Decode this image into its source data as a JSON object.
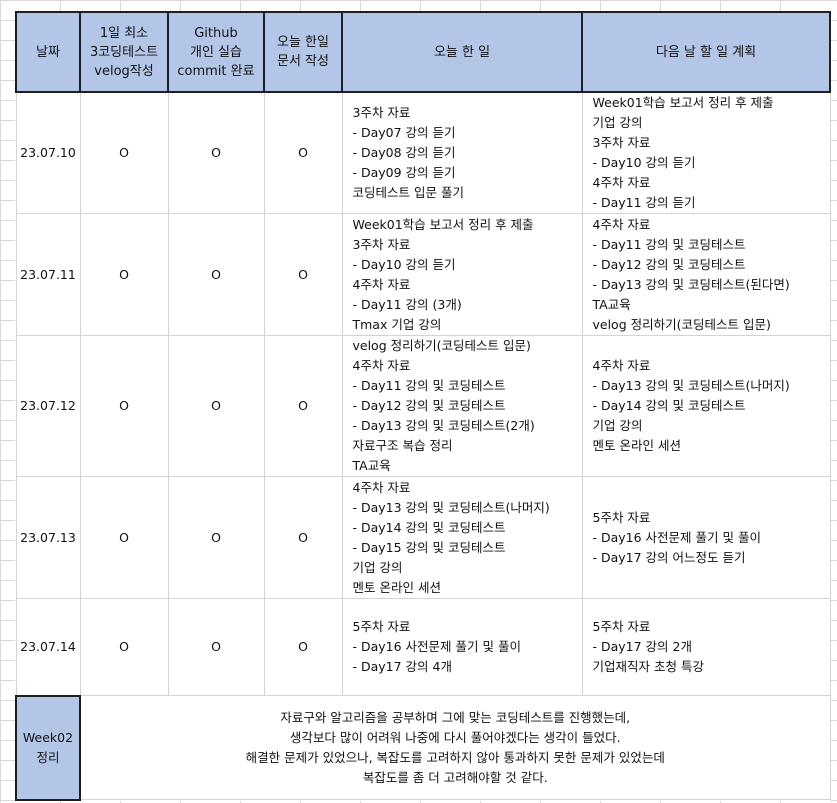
{
  "header": {
    "date": "날짜",
    "coding_test": "1일 최소\n3코딩테스트\nvelog작성",
    "github": "Github\n개인 실습\ncommit 완료",
    "doc": "오늘 한일\n문서 작성",
    "today": "오늘 한 일",
    "tomorrow": "다음 날 할 일 계획"
  },
  "rows": [
    {
      "date": "23.07.10",
      "mark1": "O",
      "mark2": "O",
      "mark3": "O",
      "today": [
        "3주차 자료",
        "- Day07 강의 듣기",
        "- Day08 강의 듣기",
        "- Day09 강의 듣기",
        "코딩테스트 입문 풀기"
      ],
      "tomorrow": [
        "Week01학습 보고서 정리 후 제출",
        "기업 강의",
        "3주차 자료",
        "- Day10 강의 듣기",
        "4주차 자료",
        "- Day11 강의 듣기"
      ]
    },
    {
      "date": "23.07.11",
      "mark1": "O",
      "mark2": "O",
      "mark3": "O",
      "today": [
        "Week01학습 보고서 정리 후 제출",
        "3주차 자료",
        "- Day10 강의 듣기",
        "4주차 자료",
        "- Day11 강의 (3개)",
        "Tmax 기업 강의"
      ],
      "tomorrow": [
        "4주차 자료",
        "- Day11 강의 및 코딩테스트",
        "- Day12 강의 및 코딩테스트",
        "- Day13 강의 및 코딩테스트(된다면)",
        "TA교육",
        "velog 정리하기(코딩테스트 입문)"
      ]
    },
    {
      "date": "23.07.12",
      "mark1": "O",
      "mark2": "O",
      "mark3": "O",
      "today": [
        "velog 정리하기(코딩테스트 입문)",
        "4주차 자료",
        "- Day11 강의 및 코딩테스트",
        "- Day12 강의 및 코딩테스트",
        "- Day13 강의 및 코딩테스트(2개)",
        "자료구조 복습 정리",
        "TA교육"
      ],
      "tomorrow": [
        "4주차 자료",
        "- Day13 강의 및 코딩테스트(나머지)",
        "- Day14 강의 및 코딩테스트",
        "기업 강의",
        "멘토 온라인 세션"
      ]
    },
    {
      "date": "23.07.13",
      "mark1": "O",
      "mark2": "O",
      "mark3": "O",
      "today": [
        "4주차 자료",
        "- Day13 강의 및 코딩테스트(나머지)",
        "- Day14 강의 및 코딩테스트",
        "- Day15 강의 및 코딩테스트",
        "기업 강의",
        "멘토 온라인 세션"
      ],
      "tomorrow": [
        "5주차 자료",
        "- Day16 사전문제 풀기 및 풀이",
        "- Day17 강의 어느정도 듣기"
      ]
    },
    {
      "date": "23.07.14",
      "mark1": "O",
      "mark2": "O",
      "mark3": "O",
      "today": [
        "5주차 자료",
        "- Day16 사전문제 풀기 및 풀이",
        "- Day17 강의 4개"
      ],
      "tomorrow": [
        "5주차 자료",
        "- Day17 강의 2개",
        "기업재직자 초청 특강"
      ]
    }
  ],
  "summary": {
    "label": "Week02\n정리",
    "lines": [
      "자료구와 알고리즘을 공부하며 그에 맞는 코딩테스트를 진행했는데,",
      "생각보다 많이 어려워 나중에 다시 풀어야겠다는 생각이 들었다.",
      "해결한 문제가 있었으나, 복잡도를 고려하지 않아 통과하지 못한 문제가 있었는데",
      "복잡도를 좀 더 고려해야할 것 같다."
    ]
  }
}
